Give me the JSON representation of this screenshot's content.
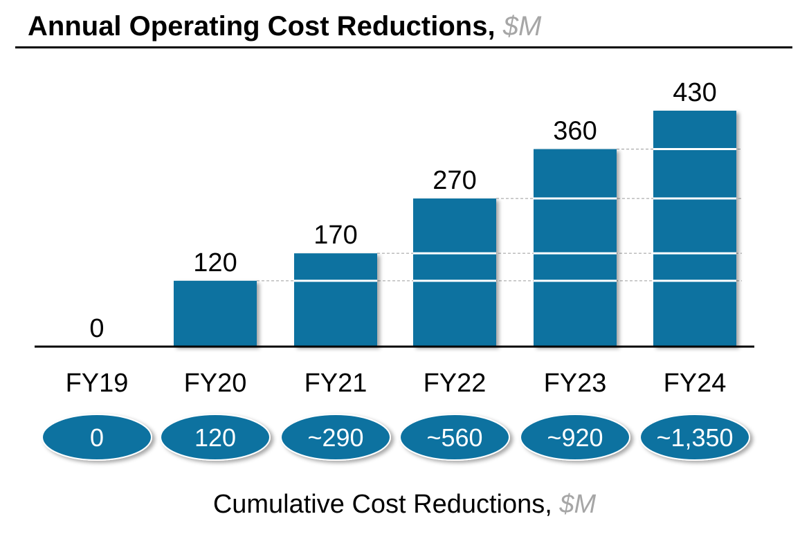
{
  "title": {
    "main": "Annual Operating Cost Reductions,",
    "unit": "$M"
  },
  "footer": {
    "main": "Cumulative Cost Reductions,",
    "unit": "$M"
  },
  "colors": {
    "bar": "#0b72a0",
    "bar_divider": "#ffffff",
    "guide_line": "#9a9a9a",
    "oval": "#0b72a0",
    "oval_text": "#ffffff",
    "unit_gray": "#a6a6a6"
  },
  "chart_data": {
    "type": "bar",
    "title": "Annual Operating Cost Reductions, $M",
    "xlabel": "",
    "ylabel": "",
    "categories": [
      "FY19",
      "FY20",
      "FY21",
      "FY22",
      "FY23",
      "FY24"
    ],
    "values": [
      0,
      120,
      170,
      270,
      360,
      430
    ],
    "value_labels": [
      "0",
      "120",
      "170",
      "270",
      "360",
      "430"
    ],
    "cumulative_labels": [
      "0",
      "120",
      "~290",
      "~560",
      "~920",
      "~1,350"
    ],
    "cumulative_title": "Cumulative Cost Reductions, $M",
    "ylim": [
      0,
      430
    ],
    "grid": false,
    "legend": "none"
  }
}
